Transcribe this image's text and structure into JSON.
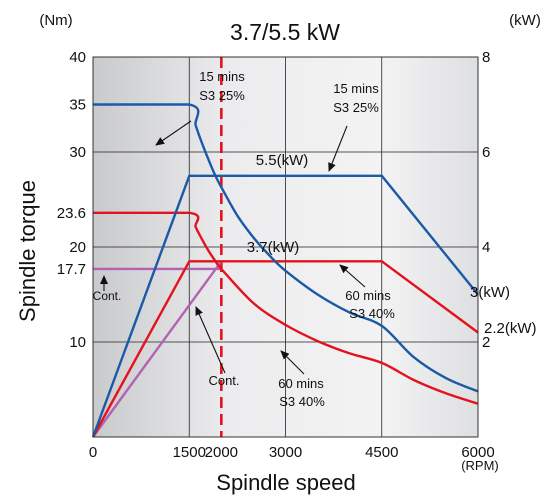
{
  "chart_data": {
    "type": "line",
    "title": "3.7/5.5 kW",
    "xlabel": "Spindle speed",
    "x_unit": "(RPM)",
    "ylabel": "Spindle torque",
    "y_unit": "(Nm)",
    "y2_unit": "(kW)",
    "xlim": [
      0,
      6000
    ],
    "ylim": [
      0,
      40
    ],
    "y2lim": [
      0,
      8
    ],
    "x_ticks": [
      0,
      1500,
      2000,
      3000,
      4500,
      6000
    ],
    "x_tick_labels": [
      "0",
      "1500",
      "2000",
      "3000",
      "4500",
      "6000"
    ],
    "y_ticks": [
      10,
      17.7,
      20,
      23.6,
      30,
      35,
      40
    ],
    "y_tick_labels": [
      "10",
      "17.7",
      "20",
      "23.6",
      "30",
      "35",
      "40"
    ],
    "y2_ticks": [
      2,
      4,
      6,
      8
    ],
    "y2_tick_labels": [
      "2",
      "4",
      "6",
      "8"
    ],
    "grid": true,
    "series": [
      {
        "axis": "y",
        "color": "#1a5aa6",
        "points": [
          [
            0,
            35
          ],
          [
            1500,
            35
          ],
          [
            1600,
            32.8
          ],
          [
            1700,
            30.9
          ],
          [
            1800,
            29.2
          ],
          [
            1900,
            27.6
          ],
          [
            2000,
            26.3
          ],
          [
            2250,
            23.3
          ],
          [
            2500,
            21.0
          ],
          [
            2750,
            19.1
          ],
          [
            3000,
            17.5
          ],
          [
            3500,
            15.0
          ],
          [
            4000,
            13.1
          ],
          [
            4500,
            11.7
          ],
          [
            5000,
            8.4
          ],
          [
            5500,
            6.2
          ],
          [
            6000,
            4.8
          ]
        ]
      },
      {
        "axis": "y",
        "color": "#e3131e",
        "points": [
          [
            0,
            23.6
          ],
          [
            1500,
            23.6
          ],
          [
            1600,
            22.1
          ],
          [
            1700,
            20.8
          ],
          [
            1800,
            19.6
          ],
          [
            1900,
            18.6
          ],
          [
            2000,
            17.7
          ],
          [
            2500,
            14.1
          ],
          [
            3000,
            11.8
          ],
          [
            3500,
            10.1
          ],
          [
            4000,
            8.8
          ],
          [
            4500,
            7.8
          ],
          [
            5000,
            6.0
          ],
          [
            5500,
            4.6
          ],
          [
            6000,
            3.5
          ]
        ]
      },
      {
        "axis": "y",
        "color": "#b262b3",
        "points": [
          [
            0,
            17.7
          ],
          [
            2000,
            17.7
          ]
        ]
      },
      {
        "axis": "y2",
        "color": "#1a5aa6",
        "points": [
          [
            0,
            0
          ],
          [
            1500,
            5.5
          ],
          [
            4500,
            5.5
          ],
          [
            6000,
            3
          ]
        ]
      },
      {
        "axis": "y2",
        "color": "#e3131e",
        "points": [
          [
            0,
            0
          ],
          [
            1500,
            3.7
          ],
          [
            4500,
            3.7
          ],
          [
            6000,
            2.2
          ]
        ]
      },
      {
        "axis": "y2",
        "color": "#b262b3",
        "points": [
          [
            0,
            0
          ],
          [
            2000,
            3.7
          ]
        ]
      }
    ],
    "reference_line": {
      "x": 2000,
      "color": "#e3131e",
      "style": "dashed"
    },
    "annotations": {
      "a1": "15 mins",
      "a1b": "S3 25%",
      "a2": "15 mins",
      "a2b": "S3 25%",
      "a3": "5.5(kW)",
      "a4": "3.7(kW)",
      "a5": "Cont.",
      "a6": "Cont.",
      "a7": "60 mins",
      "a7b": "S3 40%",
      "a8": "60 mins",
      "a8b": "S3 40%",
      "a9": "3(kW)",
      "a10": "2.2(kW)"
    }
  }
}
